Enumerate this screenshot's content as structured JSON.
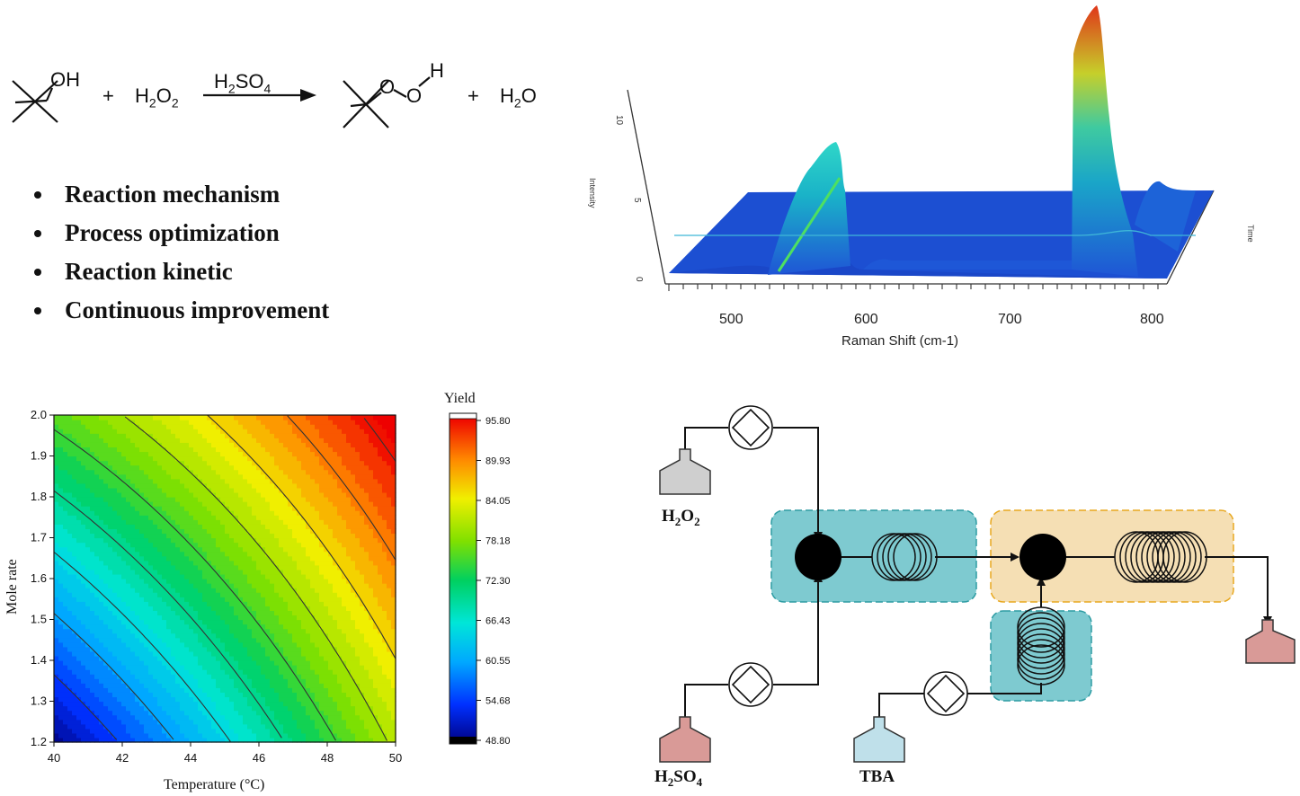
{
  "reaction": {
    "reactant1_group": "OH",
    "plus1": "+",
    "reactant2": "H2O2",
    "catalyst": "H2SO4",
    "product_o1": "O",
    "product_o2": "O",
    "product_h": "H",
    "plus2": "+",
    "coproduct": "H2O"
  },
  "bullets": [
    "Reaction mechanism",
    "Process optimization",
    "Reaction kinetic",
    "Continuous improvement"
  ],
  "raman": {
    "xlabel": "Raman Shift (cm-1)",
    "zlabel": "Intensity",
    "tlabel": "Time",
    "xticks": [
      "500",
      "600",
      "700",
      "800"
    ],
    "zticks": [
      "0",
      "5",
      "10"
    ]
  },
  "chart_data": [
    {
      "type": "heatmap",
      "xlabel": "Temperature (°C)",
      "ylabel": "Mole rate",
      "colorbar_title": "Yield",
      "xlim": [
        40,
        50
      ],
      "ylim": [
        1.2,
        2.0
      ],
      "xticks": [
        "40",
        "42",
        "44",
        "46",
        "48",
        "50"
      ],
      "yticks": [
        "1.2",
        "1.3",
        "1.4",
        "1.5",
        "1.6",
        "1.7",
        "1.8",
        "1.9",
        "2.0"
      ],
      "colorbar_ticks": [
        "95.80",
        "89.93",
        "84.05",
        "78.18",
        "72.30",
        "66.43",
        "60.55",
        "54.68",
        "48.80"
      ],
      "zlim": [
        48.8,
        95.8
      ]
    }
  ],
  "flow": {
    "h2o2": "H2O2",
    "h2so4": "H2SO4",
    "tba": "TBA",
    "colors": {
      "h2o2": "#cfcfcf",
      "h2so4": "#d99a97",
      "tba": "#bfe0ea",
      "teal": "#7ecad0",
      "orange": "#f5dfb4",
      "product": "#d99a97"
    }
  }
}
